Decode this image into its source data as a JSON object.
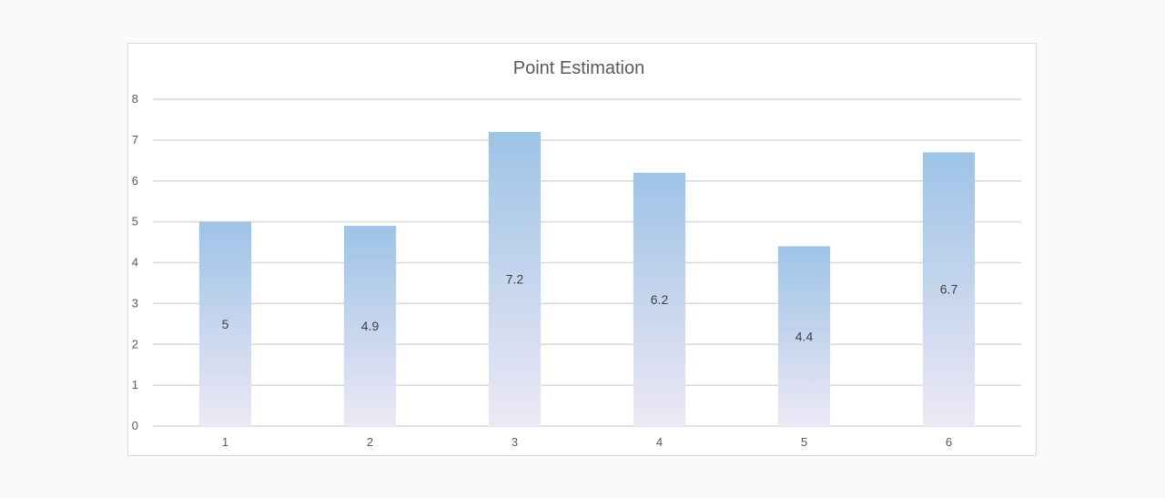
{
  "chart_data": {
    "type": "bar",
    "title": "Point Estimation",
    "xlabel": "",
    "ylabel": "",
    "categories": [
      "1",
      "2",
      "3",
      "4",
      "5",
      "6"
    ],
    "values": [
      5,
      4.9,
      7.2,
      6.2,
      4.4,
      6.7
    ],
    "data_labels": [
      "5",
      "4.9",
      "7.2",
      "6.2",
      "4.4",
      "6.7"
    ],
    "y_ticks": [
      "0",
      "1",
      "2",
      "3",
      "4",
      "5",
      "6",
      "7",
      "8"
    ],
    "ylim": [
      0,
      8
    ],
    "grid": true,
    "legend": "none",
    "bar_gradient_top": "#9dc3e6",
    "bar_gradient_bottom": "#ede8f5",
    "gridline_color": "#d9d9d9"
  }
}
